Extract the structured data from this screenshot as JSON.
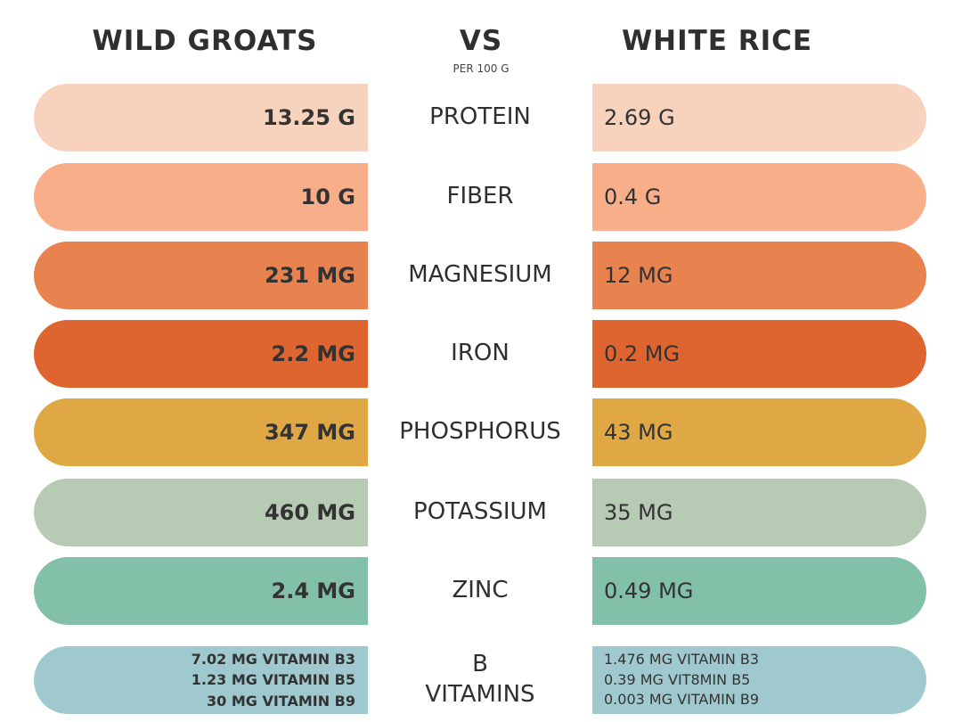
{
  "header": {
    "left": "WILD GROATS",
    "vs": "VS",
    "per": "PER 100 G",
    "right": "WHITE RICE"
  },
  "rows": [
    {
      "label": "PROTEIN",
      "left": "13.25 G",
      "right": "2.69 G",
      "color": "#F7D3BD"
    },
    {
      "label": "FIBER",
      "left": "10 G",
      "right": "0.4 G",
      "color": "#F9AE8A"
    },
    {
      "label": "MAGNESIUM",
      "left": "231 MG",
      "right": "12 MG",
      "color": "#E8834F"
    },
    {
      "label": "IRON",
      "left": "2.2 MG",
      "right": "0.2 MG",
      "color": "#DF6530"
    },
    {
      "label": "PHOSPHORUS",
      "left": "347 MG",
      "right": "43 MG",
      "color": "#E0A845"
    },
    {
      "label": "POTASSIUM",
      "left": "460 MG",
      "right": "35 MG",
      "color": "#B7CBB4"
    },
    {
      "label": "ZINC",
      "left": "2.4 MG",
      "right": "0.49 MG",
      "color": "#82C0A8"
    }
  ],
  "bvit": {
    "label1": "B",
    "label2": "VITAMINS",
    "color": "#9FC9CF",
    "left": [
      "7.02 MG VITAMIN B3",
      "1.23 MG VITAMIN B5",
      "30 MG VITAMIN B9"
    ],
    "right": [
      "1.476 MG VITAMIN B3",
      "0.39 MG VIT8MIN B5",
      "0.003  MG VITAMIN B9"
    ]
  }
}
